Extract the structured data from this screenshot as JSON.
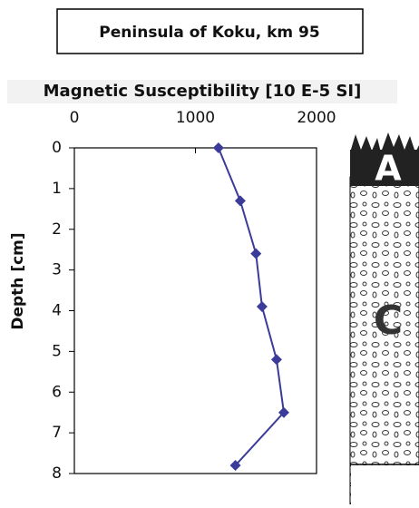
{
  "chart_data": {
    "type": "line",
    "title": "Peninsula of Koku, km 95",
    "x_label": "Magnetic Susceptibility [10 E-5 SI]",
    "y_label": "Depth [cm]",
    "depths": [
      0,
      1.3,
      2.6,
      3.9,
      5.2,
      6.5,
      7.8
    ],
    "values": [
      1190,
      1370,
      1500,
      1550,
      1670,
      1730,
      1330
    ],
    "color": "#3b3b9a",
    "xlim": [
      0,
      2000
    ],
    "xticks": [
      0,
      1000,
      2000
    ],
    "ylim": [
      0,
      8
    ],
    "yticks": [
      0,
      1,
      2,
      3,
      4,
      5,
      6,
      7,
      8
    ]
  },
  "profile_labels": [
    "A",
    "C"
  ]
}
